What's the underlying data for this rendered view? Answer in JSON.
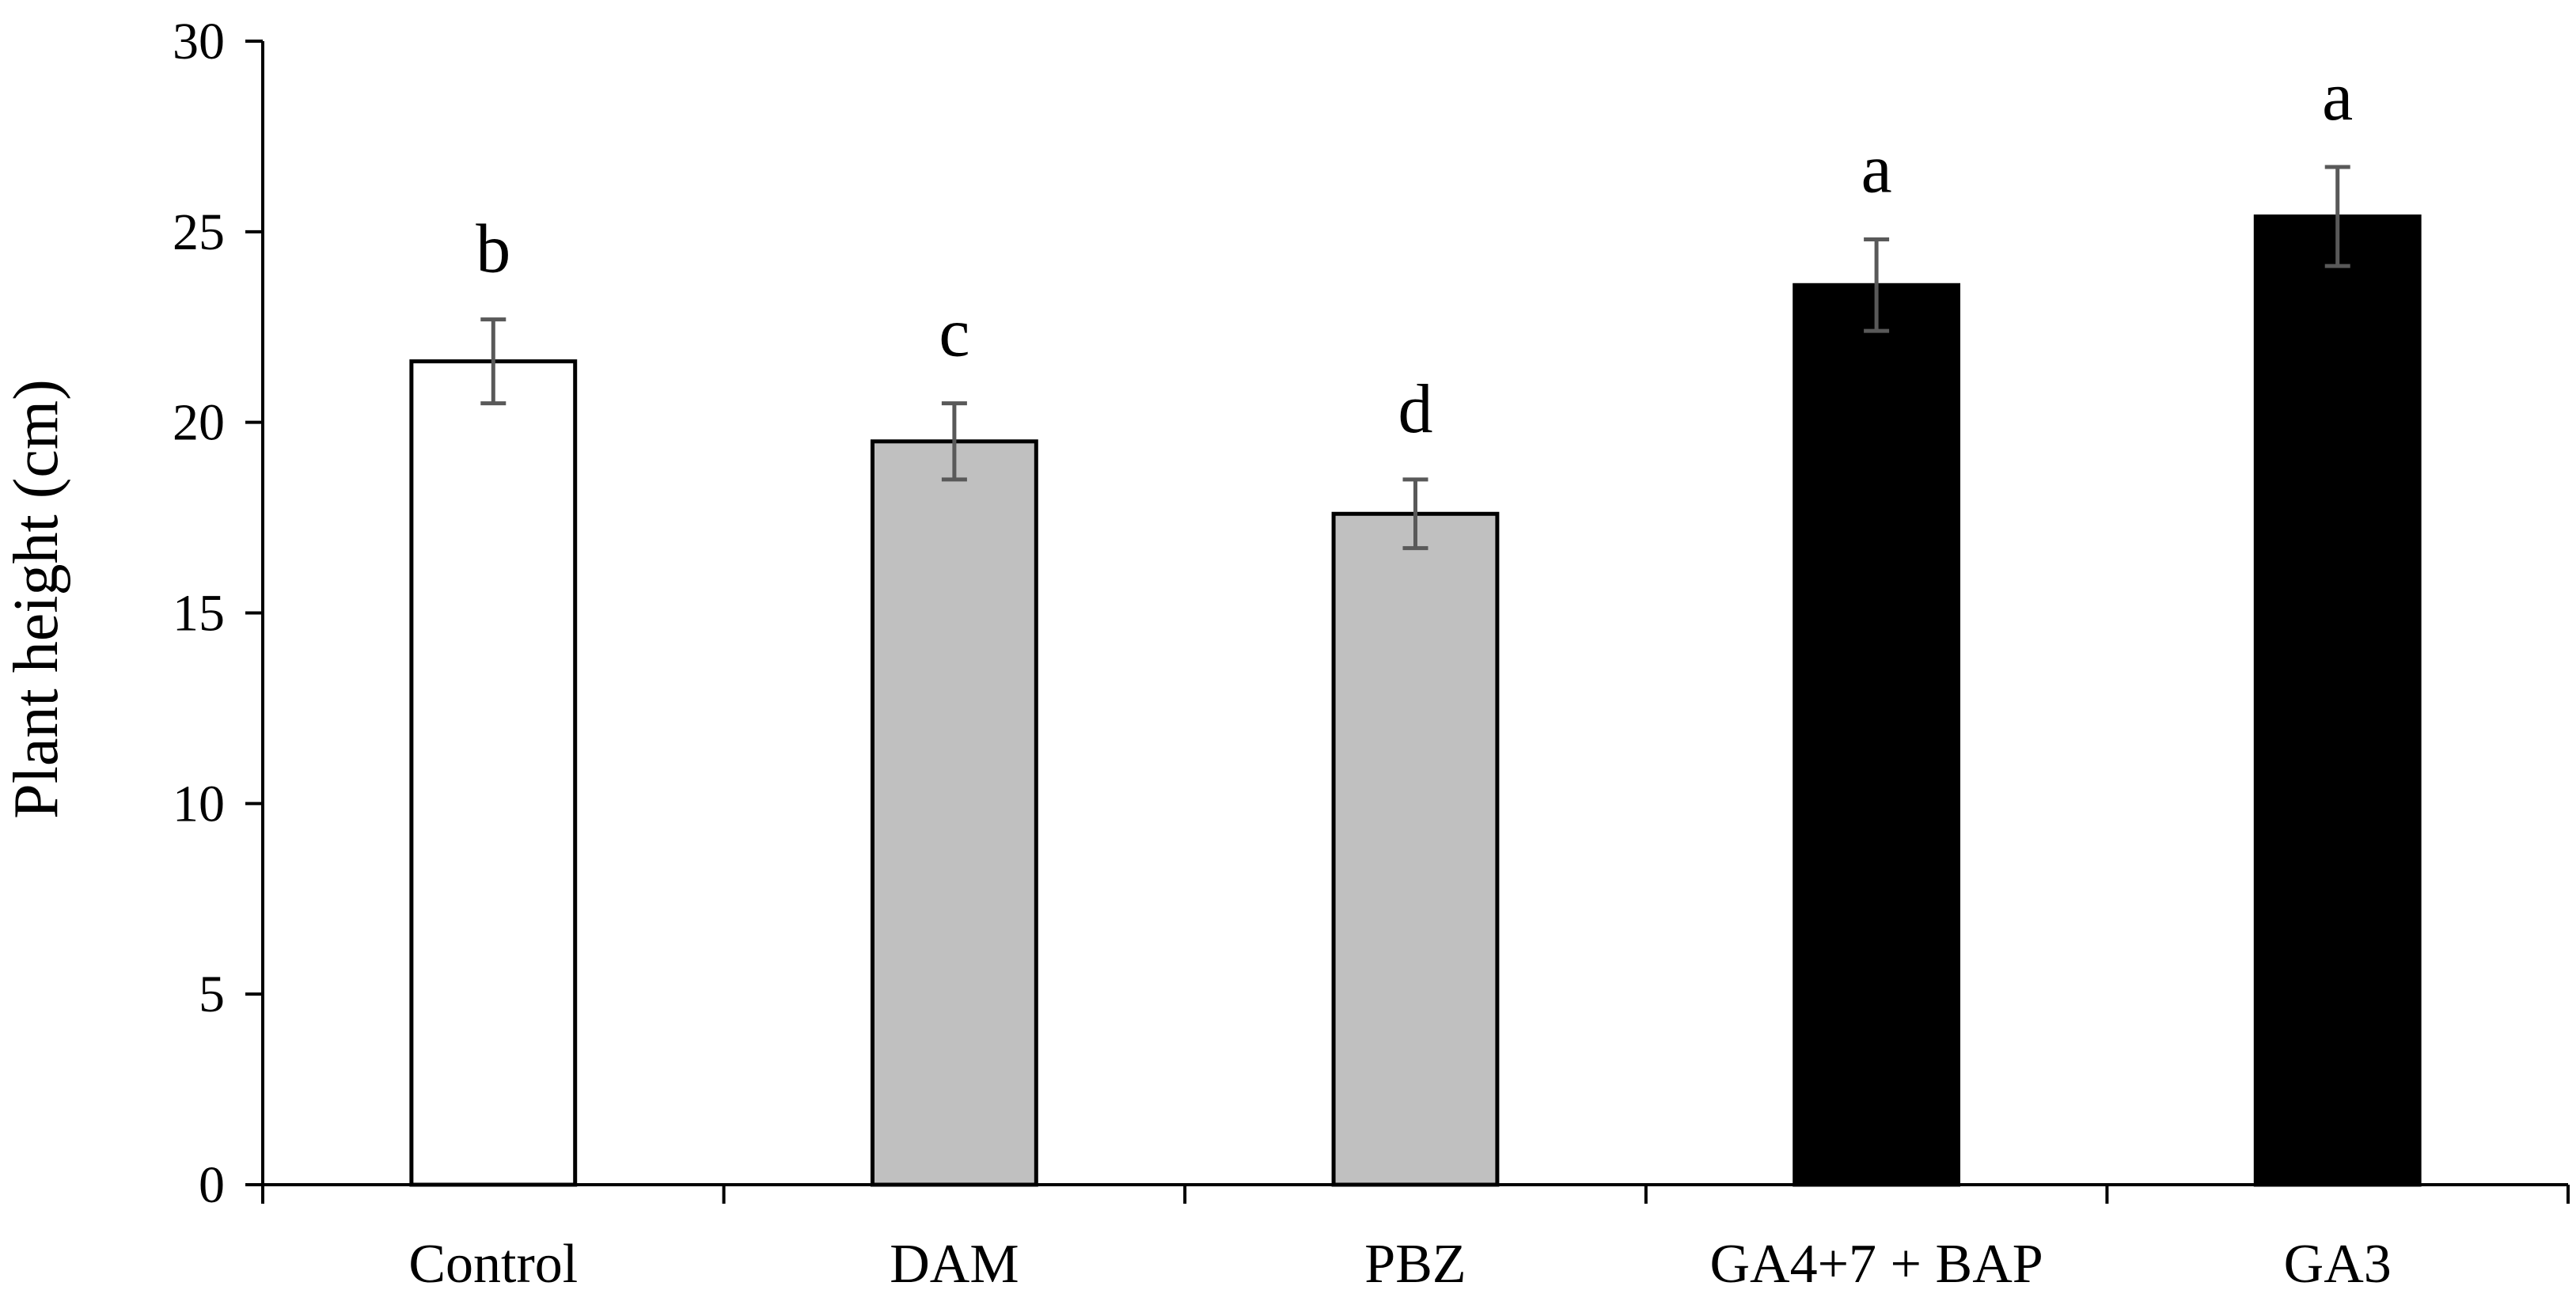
{
  "chart_data": {
    "type": "bar",
    "title": "",
    "xlabel": "",
    "ylabel": "Plant height (cm)",
    "ylim": [
      0,
      30
    ],
    "yticks": [
      "0",
      "5",
      "10",
      "15",
      "20",
      "25",
      "30"
    ],
    "grid": false,
    "legend": "none",
    "categories": [
      "Control",
      "DAM",
      "PBZ",
      "GA4+7 + BAP",
      "GA3"
    ],
    "values": [
      21.6,
      19.5,
      17.6,
      23.6,
      25.4
    ],
    "errors": [
      1.1,
      1.0,
      0.9,
      1.2,
      1.3
    ],
    "significance": [
      "b",
      "c",
      "d",
      "a",
      "a"
    ],
    "colors": [
      "#ffffff",
      "#c0c0c0",
      "#c0c0c0",
      "#000000",
      "#000000"
    ],
    "bar_edge_color": "#000000",
    "error_bar_color": "#595959"
  }
}
